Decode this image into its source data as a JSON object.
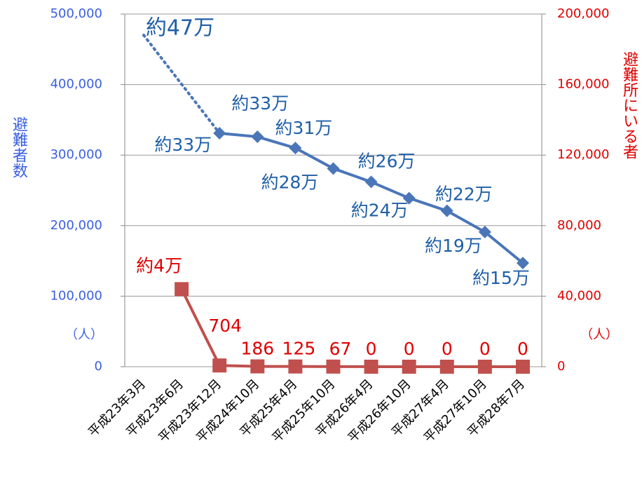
{
  "chart_data": {
    "type": "line",
    "categories": [
      "平成23年3月",
      "平成23年6月",
      "平成23年12月",
      "平成24年10月",
      "平成25年4月",
      "平成25年10月",
      "平成26年4月",
      "平成26年10月",
      "平成27年4月",
      "平成27年10月",
      "平成28年7月"
    ],
    "series": [
      {
        "name": "避難者数",
        "color": "#4a76b8",
        "connect_gaps": "dotted",
        "values": [
          470000,
          null,
          331000,
          326000,
          310000,
          281000,
          262000,
          239000,
          221000,
          191000,
          147000
        ],
        "value_labels": [
          "約47万",
          null,
          "約33万",
          "約33万",
          "約31万",
          "約28万",
          "約26万",
          "約24万",
          "約22万",
          "約19万",
          "約15万"
        ]
      },
      {
        "name": "避難所にいる者",
        "color": "#c0504d",
        "axis": "y2",
        "values": [
          null,
          44000,
          704,
          186,
          125,
          67,
          0,
          0,
          0,
          0,
          0
        ],
        "value_labels": [
          null,
          "約4万",
          "704",
          "186",
          "125",
          "67",
          "0",
          "0",
          "0",
          "0",
          "0"
        ]
      }
    ],
    "ylabel": "避難者数",
    "yunit": "（人）",
    "y2label": "避難所にいる者",
    "y2unit": "（人）",
    "ylim": [
      0,
      500000
    ],
    "yticks": [
      0,
      {
        "value": 100000,
        "label": "100,000"
      },
      {
        "value": 200000,
        "label": "200,000"
      },
      {
        "value": 300000,
        "label": "300,000"
      },
      {
        "value": 400000,
        "label": "400,000"
      },
      {
        "value": 500000,
        "label": "500,000"
      }
    ],
    "y2lim": [
      0,
      200000
    ],
    "y2ticks": [
      0,
      {
        "value": 40000,
        "label": "40,000"
      },
      {
        "value": 80000,
        "label": "80,000"
      },
      {
        "value": 120000,
        "label": "120,000"
      },
      {
        "value": 160000,
        "label": "160,000"
      },
      {
        "value": 200000,
        "label": "200,000"
      }
    ],
    "grid": true,
    "ycolor": "#3a5fe0",
    "y2color": "#e00000"
  }
}
